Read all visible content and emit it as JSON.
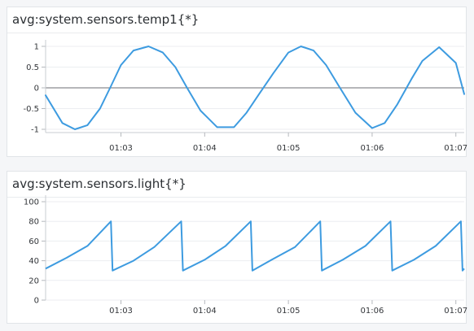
{
  "panels": [
    {
      "title": "avg:system.sensors.temp1{*}",
      "chart_data": {
        "type": "line",
        "x_tick_labels": [
          "01:03",
          "01:04",
          "01:05",
          "01:06",
          "01:07"
        ],
        "y_tick_labels": [
          "1",
          "0.5",
          "0",
          "-0.5",
          "-1"
        ],
        "y_ticks": [
          1,
          0.5,
          0,
          -0.5,
          -1
        ],
        "ylim": [
          -1,
          1
        ],
        "xlim_minutes": [
          2.1,
          7.1
        ],
        "x_ticks_minutes": [
          3,
          4,
          5,
          6,
          7
        ],
        "grid": true,
        "series": [
          {
            "color": "#3d9be0",
            "x_minutes": [
              2.1,
              2.3,
              2.45,
              2.6,
              2.75,
              2.87,
              3.0,
              3.15,
              3.33,
              3.5,
              3.65,
              3.79,
              3.95,
              4.15,
              4.35,
              4.5,
              4.65,
              4.82,
              5.0,
              5.15,
              5.3,
              5.45,
              5.6,
              5.8,
              6.0,
              6.15,
              6.3,
              6.48,
              6.6,
              6.8,
              7.0,
              7.1
            ],
            "values": [
              -0.18,
              -0.85,
              -1.0,
              -0.9,
              -0.5,
              0.0,
              0.55,
              0.9,
              1.0,
              0.85,
              0.5,
              0.0,
              -0.55,
              -0.95,
              -0.95,
              -0.6,
              -0.15,
              0.35,
              0.85,
              1.0,
              0.9,
              0.55,
              0.05,
              -0.6,
              -0.97,
              -0.85,
              -0.4,
              0.25,
              0.65,
              0.98,
              0.6,
              -0.15
            ]
          }
        ]
      }
    },
    {
      "title": "avg:system.sensors.light{*}",
      "chart_data": {
        "type": "line",
        "x_tick_labels": [
          "01:03",
          "01:04",
          "01:05",
          "01:06",
          "01:07"
        ],
        "y_tick_labels": [
          "100",
          "80",
          "60",
          "40",
          "20",
          "0"
        ],
        "y_ticks": [
          100,
          80,
          60,
          40,
          20,
          0
        ],
        "ylim": [
          0,
          100
        ],
        "xlim_minutes": [
          2.1,
          7.1
        ],
        "x_ticks_minutes": [
          3,
          4,
          5,
          6,
          7
        ],
        "grid": true,
        "series": [
          {
            "color": "#3d9be0",
            "x_minutes": [
              2.1,
              2.35,
              2.6,
              2.88,
              2.9,
              3.15,
              3.4,
              3.72,
              3.74,
              4.0,
              4.25,
              4.55,
              4.57,
              4.8,
              5.08,
              5.38,
              5.4,
              5.65,
              5.92,
              6.22,
              6.24,
              6.5,
              6.76,
              7.06,
              7.08,
              7.1
            ],
            "values": [
              32,
              43,
              55,
              80,
              30,
              40,
              54,
              80,
              30,
              41,
              55,
              80,
              30,
              41,
              54,
              80,
              30,
              41,
              55,
              80,
              30,
              41,
              55,
              80,
              30,
              32
            ]
          }
        ]
      }
    }
  ]
}
